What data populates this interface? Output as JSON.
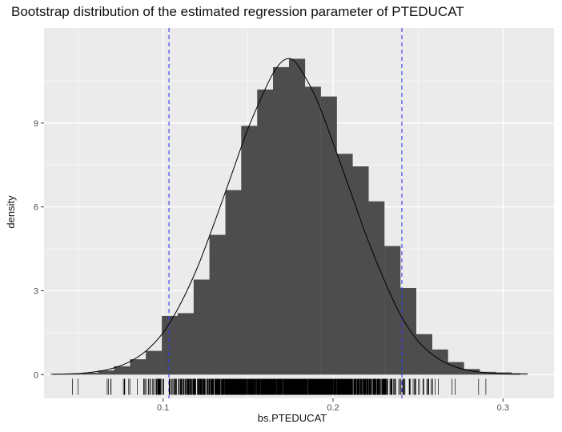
{
  "chart_data": {
    "type": "histogram",
    "title": "Bootstrap distribution of the estimated regression parameter of PTEDUCAT",
    "xlabel": "bs.PTEDUCAT",
    "ylabel": "density",
    "xlim": [
      0.03,
      0.33
    ],
    "ylim": [
      -0.85,
      12.4
    ],
    "x_ticks": [
      0.1,
      0.2,
      0.3
    ],
    "x_tick_labels": [
      "0.1",
      "0.2",
      "0.3"
    ],
    "y_ticks": [
      0,
      3,
      6,
      9
    ],
    "y_tick_labels": [
      "0",
      "3",
      "6",
      "9"
    ],
    "bin_width": 0.00935,
    "bins": [
      {
        "x_start": 0.0338,
        "density": 0.03
      },
      {
        "x_start": 0.0432,
        "density": 0.03
      },
      {
        "x_start": 0.0525,
        "density": 0.07
      },
      {
        "x_start": 0.0619,
        "density": 0.15
      },
      {
        "x_start": 0.0712,
        "density": 0.3
      },
      {
        "x_start": 0.0806,
        "density": 0.55
      },
      {
        "x_start": 0.0899,
        "density": 0.85
      },
      {
        "x_start": 0.0993,
        "density": 2.1
      },
      {
        "x_start": 0.1086,
        "density": 2.2
      },
      {
        "x_start": 0.118,
        "density": 3.4
      },
      {
        "x_start": 0.1273,
        "density": 5.0
      },
      {
        "x_start": 0.1367,
        "density": 6.6
      },
      {
        "x_start": 0.146,
        "density": 8.9
      },
      {
        "x_start": 0.1554,
        "density": 10.2
      },
      {
        "x_start": 0.1647,
        "density": 11.0
      },
      {
        "x_start": 0.1741,
        "density": 11.3
      },
      {
        "x_start": 0.1834,
        "density": 10.3
      },
      {
        "x_start": 0.1928,
        "density": 9.95
      },
      {
        "x_start": 0.2021,
        "density": 7.9
      },
      {
        "x_start": 0.2115,
        "density": 7.45
      },
      {
        "x_start": 0.2208,
        "density": 6.2
      },
      {
        "x_start": 0.2302,
        "density": 4.6
      },
      {
        "x_start": 0.2395,
        "density": 3.1
      },
      {
        "x_start": 0.2489,
        "density": 1.45
      },
      {
        "x_start": 0.2582,
        "density": 0.9
      },
      {
        "x_start": 0.2676,
        "density": 0.45
      },
      {
        "x_start": 0.2769,
        "density": 0.2
      },
      {
        "x_start": 0.2863,
        "density": 0.1
      },
      {
        "x_start": 0.2956,
        "density": 0.08
      },
      {
        "x_start": 0.305,
        "density": 0.05
      }
    ],
    "density_curve": [
      [
        0.035,
        0.01
      ],
      [
        0.05,
        0.04
      ],
      [
        0.06,
        0.1
      ],
      [
        0.07,
        0.22
      ],
      [
        0.08,
        0.45
      ],
      [
        0.09,
        0.85
      ],
      [
        0.1,
        1.5
      ],
      [
        0.11,
        2.5
      ],
      [
        0.12,
        3.8
      ],
      [
        0.13,
        5.4
      ],
      [
        0.14,
        7.1
      ],
      [
        0.15,
        8.8
      ],
      [
        0.16,
        10.2
      ],
      [
        0.165,
        10.8
      ],
      [
        0.17,
        11.2
      ],
      [
        0.175,
        11.3
      ],
      [
        0.18,
        11.0
      ],
      [
        0.19,
        9.9
      ],
      [
        0.2,
        8.3
      ],
      [
        0.21,
        6.6
      ],
      [
        0.22,
        4.9
      ],
      [
        0.23,
        3.4
      ],
      [
        0.24,
        2.1
      ],
      [
        0.25,
        1.2
      ],
      [
        0.26,
        0.65
      ],
      [
        0.27,
        0.32
      ],
      [
        0.28,
        0.15
      ],
      [
        0.29,
        0.07
      ],
      [
        0.3,
        0.03
      ],
      [
        0.31,
        0.01
      ]
    ],
    "reference_lines": [
      {
        "x": 0.1035,
        "color": "#3a3aee",
        "style": "dashed"
      },
      {
        "x": 0.2405,
        "color": "#3a3aee",
        "style": "dashed"
      }
    ],
    "rug": {
      "min": 0.035,
      "max": 0.315,
      "mean": 0.172,
      "sd": 0.036,
      "count": 1400
    },
    "colors": {
      "panel": "#ebebeb",
      "grid": "#ffffff",
      "bar": "#4d4d4d",
      "curve": "#000000",
      "rug": "#000000"
    }
  }
}
